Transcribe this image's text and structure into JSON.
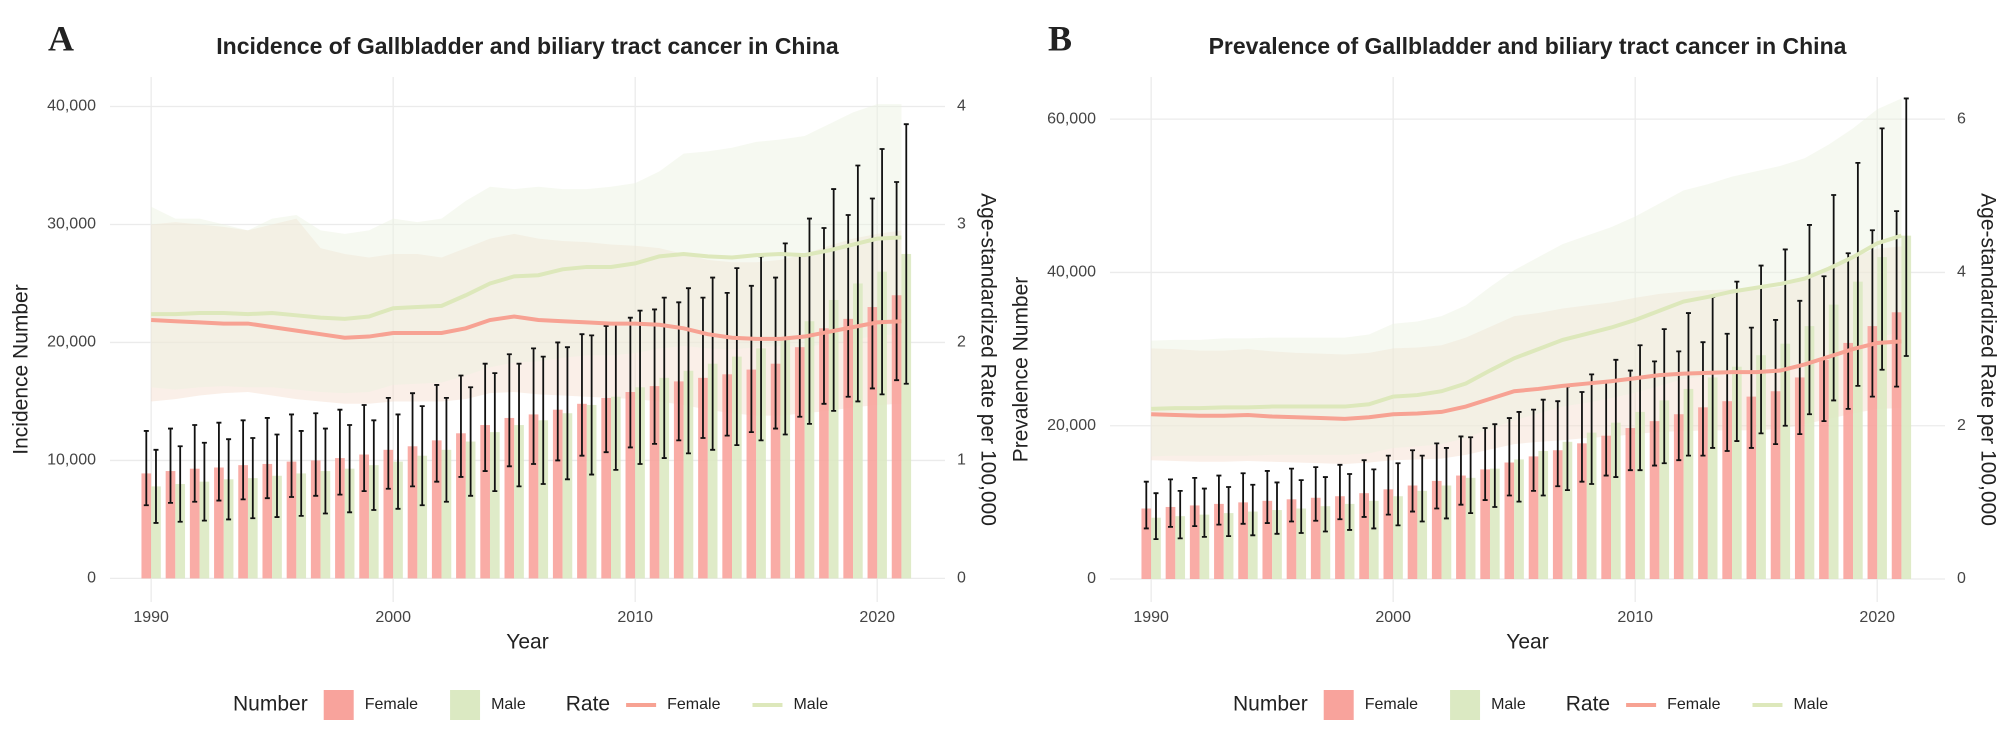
{
  "chart_data": [
    {
      "type": "bar-line",
      "panel_label": "A",
      "title": "Incidence of Gallbladder and biliary tract cancer in China",
      "x_label": "Year",
      "y_label": "Incidence Number",
      "y2_label": "Age-standardized Rate per 100,000",
      "number_legend_title": "Number",
      "rate_legend_title": "Rate",
      "grid": true,
      "x": [
        1990,
        1991,
        1992,
        1993,
        1994,
        1995,
        1996,
        1997,
        1998,
        1999,
        2000,
        2001,
        2002,
        2003,
        2004,
        2005,
        2006,
        2007,
        2008,
        2009,
        2010,
        2011,
        2012,
        2013,
        2014,
        2015,
        2016,
        2017,
        2018,
        2019,
        2020,
        2021
      ],
      "xlim": [
        1988.3,
        2022.8
      ],
      "xticks": [
        1990,
        2000,
        2010,
        2020
      ],
      "ylim": [
        -2000,
        42500
      ],
      "yticks": [
        0,
        {
          "value": 10000,
          "label": "10,000"
        },
        {
          "value": 20000,
          "label": "20,000"
        },
        {
          "value": 30000,
          "label": "30,000"
        },
        {
          "value": 40000,
          "label": "40,000"
        }
      ],
      "y2lim": [
        -0.2,
        4.25
      ],
      "y2ticks": [
        0,
        1,
        2,
        3,
        4
      ],
      "series": [
        {
          "name": "Female",
          "kind": "bar",
          "color": "#f8a39c",
          "values": [
            8900,
            9100,
            9300,
            9400,
            9600,
            9700,
            9900,
            10000,
            10200,
            10500,
            10900,
            11200,
            11700,
            12300,
            13000,
            13600,
            13900,
            14300,
            14800,
            15300,
            15800,
            16300,
            16700,
            17000,
            17300,
            17700,
            18200,
            19600,
            21200,
            22000,
            23000,
            24000
          ],
          "lower": [
            6200,
            6400,
            6500,
            6600,
            6700,
            6800,
            6900,
            7000,
            7100,
            7400,
            7600,
            7800,
            8200,
            8600,
            9100,
            9500,
            9700,
            10000,
            10400,
            10700,
            11100,
            11400,
            11700,
            11900,
            12100,
            12400,
            12700,
            13700,
            14800,
            15400,
            16100,
            16800
          ],
          "upper": [
            12500,
            12700,
            13000,
            13200,
            13400,
            13600,
            13900,
            14000,
            14300,
            14700,
            15300,
            15700,
            16400,
            17200,
            18200,
            19000,
            19500,
            20000,
            20700,
            21400,
            22100,
            22800,
            23400,
            23800,
            24200,
            24800,
            25500,
            27400,
            29700,
            30800,
            32200,
            33600
          ]
        },
        {
          "name": "Male",
          "kind": "bar",
          "color": "#dbe9c2",
          "values": [
            7800,
            8000,
            8200,
            8400,
            8500,
            8700,
            8900,
            9100,
            9300,
            9600,
            9900,
            10400,
            10900,
            11600,
            12400,
            13000,
            13400,
            14000,
            14700,
            15400,
            16200,
            17000,
            17600,
            18200,
            18800,
            19500,
            20300,
            21800,
            23600,
            25000,
            26000,
            27500
          ],
          "lower": [
            4700,
            4800,
            4900,
            5000,
            5100,
            5200,
            5300,
            5500,
            5600,
            5800,
            5900,
            6200,
            6500,
            7000,
            7400,
            7800,
            8000,
            8400,
            8800,
            9200,
            9700,
            10200,
            10600,
            10900,
            11300,
            11700,
            12200,
            13100,
            14200,
            15000,
            15600,
            16500
          ],
          "upper": [
            10900,
            11200,
            11500,
            11800,
            11900,
            12200,
            12500,
            12700,
            13000,
            13400,
            13900,
            14600,
            15300,
            16200,
            17400,
            18200,
            18800,
            19600,
            20600,
            21600,
            22700,
            23800,
            24600,
            25500,
            26300,
            27300,
            28400,
            30500,
            33000,
            35000,
            36400,
            38500
          ]
        },
        {
          "name": "Female",
          "kind": "line",
          "axis": "y2",
          "color": "#f7a293",
          "band_color": "#f3dccc",
          "values": [
            2.19,
            2.18,
            2.17,
            2.16,
            2.16,
            2.13,
            2.1,
            2.07,
            2.04,
            2.05,
            2.08,
            2.08,
            2.08,
            2.12,
            2.19,
            2.22,
            2.19,
            2.18,
            2.17,
            2.16,
            2.16,
            2.15,
            2.12,
            2.07,
            2.04,
            2.03,
            2.03,
            2.05,
            2.09,
            2.13,
            2.17,
            2.18
          ],
          "lower": [
            1.5,
            1.52,
            1.55,
            1.57,
            1.58,
            1.55,
            1.52,
            1.5,
            1.48,
            1.48,
            1.5,
            1.5,
            1.5,
            1.52,
            1.57,
            1.58,
            1.56,
            1.55,
            1.54,
            1.53,
            1.52,
            1.5,
            1.47,
            1.43,
            1.4,
            1.38,
            1.38,
            1.4,
            1.42,
            1.45,
            1.47,
            1.48
          ],
          "upper": [
            3.0,
            3.02,
            3.0,
            2.98,
            2.95,
            3.0,
            3.05,
            2.8,
            2.75,
            2.72,
            2.75,
            2.75,
            2.72,
            2.8,
            2.88,
            2.92,
            2.88,
            2.86,
            2.85,
            2.83,
            2.82,
            2.8,
            2.75,
            2.7,
            2.68,
            2.68,
            2.7,
            2.75,
            2.82,
            2.88,
            2.92,
            2.95
          ]
        },
        {
          "name": "Male",
          "kind": "line",
          "axis": "y2",
          "color": "#dde8bb",
          "band_color": "#eaf2df",
          "values": [
            2.24,
            2.24,
            2.25,
            2.25,
            2.24,
            2.25,
            2.23,
            2.21,
            2.2,
            2.22,
            2.29,
            2.3,
            2.31,
            2.4,
            2.5,
            2.56,
            2.57,
            2.62,
            2.64,
            2.64,
            2.67,
            2.73,
            2.75,
            2.73,
            2.72,
            2.74,
            2.75,
            2.74,
            2.78,
            2.83,
            2.88,
            2.89
          ],
          "lower": [
            1.62,
            1.6,
            1.62,
            1.63,
            1.62,
            1.62,
            1.6,
            1.58,
            1.57,
            1.58,
            1.64,
            1.65,
            1.66,
            1.72,
            1.79,
            1.83,
            1.84,
            1.87,
            1.89,
            1.89,
            1.91,
            1.95,
            1.97,
            1.95,
            1.94,
            1.96,
            1.97,
            1.96,
            1.99,
            2.02,
            2.06,
            2.07
          ],
          "upper": [
            3.15,
            3.05,
            3.05,
            3.0,
            2.95,
            3.05,
            3.08,
            2.95,
            2.92,
            2.95,
            3.05,
            3.02,
            3.05,
            3.2,
            3.32,
            3.3,
            3.32,
            3.3,
            3.3,
            3.32,
            3.35,
            3.45,
            3.6,
            3.62,
            3.65,
            3.7,
            3.72,
            3.75,
            3.85,
            3.95,
            4.02,
            4.02
          ]
        }
      ]
    },
    {
      "type": "bar-line",
      "panel_label": "B",
      "title": "Prevalence of Gallbladder and biliary tract cancer in China",
      "x_label": "Year",
      "y_label": "Prevalence Number",
      "y2_label": "Age-standardized Rate per 100,000",
      "number_legend_title": "Number",
      "rate_legend_title": "Rate",
      "grid": true,
      "x": [
        1990,
        1991,
        1992,
        1993,
        1994,
        1995,
        1996,
        1997,
        1998,
        1999,
        2000,
        2001,
        2002,
        2003,
        2004,
        2005,
        2006,
        2007,
        2008,
        2009,
        2010,
        2011,
        2012,
        2013,
        2014,
        2015,
        2016,
        2017,
        2018,
        2019,
        2020,
        2021
      ],
      "xlim": [
        1988.3,
        2022.8
      ],
      "xticks": [
        1990,
        2000,
        2010,
        2020
      ],
      "ylim": [
        -3000,
        65500
      ],
      "yticks": [
        0,
        {
          "value": 20000,
          "label": "20,000"
        },
        {
          "value": 40000,
          "label": "40,000"
        },
        {
          "value": 60000,
          "label": "60,000"
        }
      ],
      "y2lim": [
        -0.3,
        6.55
      ],
      "y2ticks": [
        0,
        2,
        4,
        6
      ],
      "series": [
        {
          "name": "Female",
          "kind": "bar",
          "color": "#f8a39c",
          "values": [
            9200,
            9400,
            9600,
            9800,
            10000,
            10200,
            10400,
            10600,
            10800,
            11200,
            11700,
            12200,
            12800,
            13500,
            14300,
            15200,
            16000,
            16800,
            17700,
            18700,
            19700,
            20600,
            21500,
            22400,
            23200,
            23800,
            24500,
            26300,
            28600,
            30800,
            33000,
            34800
          ],
          "lower": [
            6600,
            6800,
            6900,
            7100,
            7200,
            7300,
            7500,
            7600,
            7800,
            8100,
            8400,
            8800,
            9200,
            9700,
            10300,
            10900,
            11500,
            12100,
            12700,
            13500,
            14200,
            14800,
            15500,
            16100,
            16700,
            17100,
            17600,
            18900,
            20600,
            22200,
            23800,
            25100
          ],
          "upper": [
            12700,
            13000,
            13200,
            13500,
            13800,
            14100,
            14400,
            14600,
            14900,
            15500,
            16100,
            16800,
            17700,
            18600,
            19700,
            21000,
            22100,
            23200,
            24400,
            25800,
            27200,
            28400,
            29700,
            30900,
            32000,
            32800,
            33800,
            36300,
            39500,
            42500,
            45500,
            48000
          ]
        },
        {
          "name": "Male",
          "kind": "bar",
          "color": "#dbe9c2",
          "values": [
            8000,
            8200,
            8400,
            8600,
            8800,
            9000,
            9200,
            9500,
            9800,
            10200,
            10800,
            11500,
            12200,
            13200,
            14400,
            15600,
            16700,
            17900,
            19100,
            20400,
            21800,
            23300,
            24800,
            26300,
            27700,
            29200,
            30700,
            33000,
            35800,
            38800,
            42000,
            44800
          ],
          "lower": [
            5200,
            5300,
            5500,
            5600,
            5700,
            5900,
            6000,
            6200,
            6400,
            6600,
            7000,
            7500,
            7900,
            8600,
            9400,
            10100,
            10900,
            11600,
            12400,
            13300,
            14200,
            15100,
            16100,
            17100,
            18000,
            19000,
            20000,
            21500,
            23300,
            25200,
            27300,
            29100
          ],
          "upper": [
            11200,
            11500,
            11800,
            12000,
            12300,
            12600,
            12900,
            13300,
            13700,
            14300,
            15100,
            16100,
            17100,
            18500,
            20200,
            21800,
            23400,
            25100,
            26700,
            28600,
            30500,
            32600,
            34700,
            36800,
            38800,
            40900,
            43000,
            46200,
            50100,
            54300,
            58800,
            62700
          ]
        },
        {
          "name": "Female",
          "kind": "line",
          "axis": "y2",
          "color": "#f7a293",
          "band_color": "#f3dccc",
          "values": [
            2.15,
            2.14,
            2.13,
            2.13,
            2.14,
            2.12,
            2.11,
            2.1,
            2.09,
            2.11,
            2.15,
            2.16,
            2.18,
            2.25,
            2.35,
            2.45,
            2.48,
            2.52,
            2.55,
            2.58,
            2.62,
            2.66,
            2.68,
            2.69,
            2.7,
            2.7,
            2.72,
            2.8,
            2.9,
            3.0,
            3.08,
            3.1
          ],
          "lower": [
            1.55,
            1.54,
            1.53,
            1.53,
            1.54,
            1.53,
            1.52,
            1.51,
            1.5,
            1.52,
            1.55,
            1.56,
            1.57,
            1.62,
            1.69,
            1.76,
            1.79,
            1.81,
            1.84,
            1.86,
            1.89,
            1.92,
            1.93,
            1.94,
            1.94,
            1.94,
            1.96,
            2.02,
            2.09,
            2.16,
            2.22,
            2.23
          ],
          "upper": [
            3.01,
            3.0,
            2.98,
            2.98,
            3.0,
            2.97,
            2.95,
            2.94,
            2.93,
            2.95,
            3.01,
            3.02,
            3.05,
            3.15,
            3.29,
            3.43,
            3.47,
            3.53,
            3.57,
            3.61,
            3.67,
            3.72,
            3.75,
            3.77,
            3.78,
            3.78,
            3.81,
            3.92,
            4.06,
            4.2,
            4.31,
            4.34
          ]
        },
        {
          "name": "Male",
          "kind": "line",
          "axis": "y2",
          "color": "#dde8bb",
          "band_color": "#eaf2df",
          "values": [
            2.22,
            2.23,
            2.23,
            2.24,
            2.24,
            2.25,
            2.25,
            2.25,
            2.25,
            2.28,
            2.38,
            2.4,
            2.45,
            2.55,
            2.72,
            2.88,
            3.0,
            3.12,
            3.2,
            3.28,
            3.38,
            3.5,
            3.62,
            3.68,
            3.75,
            3.8,
            3.85,
            3.92,
            4.05,
            4.2,
            4.38,
            4.48
          ],
          "lower": [
            1.6,
            1.61,
            1.61,
            1.61,
            1.61,
            1.62,
            1.62,
            1.62,
            1.62,
            1.64,
            1.71,
            1.73,
            1.76,
            1.84,
            1.96,
            2.07,
            2.16,
            2.25,
            2.3,
            2.36,
            2.43,
            2.52,
            2.61,
            2.65,
            2.7,
            2.74,
            2.77,
            2.82,
            2.92,
            3.02,
            3.15,
            3.23
          ],
          "upper": [
            3.11,
            3.12,
            3.12,
            3.14,
            3.14,
            3.15,
            3.15,
            3.15,
            3.15,
            3.19,
            3.33,
            3.36,
            3.43,
            3.57,
            3.81,
            4.03,
            4.2,
            4.37,
            4.48,
            4.59,
            4.73,
            4.9,
            5.07,
            5.15,
            5.25,
            5.32,
            5.39,
            5.49,
            5.67,
            5.88,
            6.13,
            6.27
          ]
        }
      ]
    }
  ]
}
